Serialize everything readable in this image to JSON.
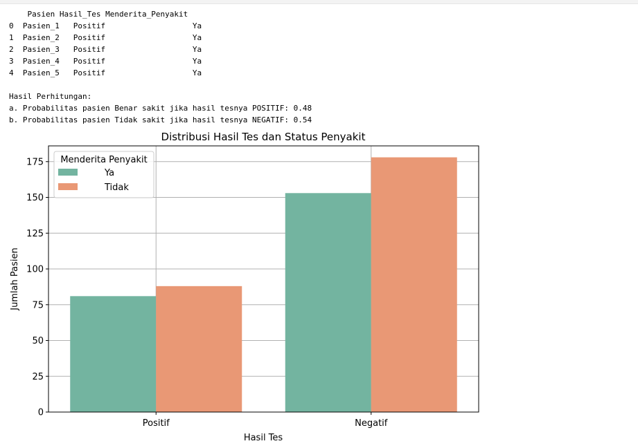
{
  "console": {
    "table": {
      "columns": [
        "Pasien",
        "Hasil_Tes",
        "Menderita_Penyakit"
      ],
      "rows": [
        {
          "index": "0",
          "Pasien": "Pasien_1",
          "Hasil_Tes": "Positif",
          "Menderita_Penyakit": "Ya"
        },
        {
          "index": "1",
          "Pasien": "Pasien_2",
          "Hasil_Tes": "Positif",
          "Menderita_Penyakit": "Ya"
        },
        {
          "index": "2",
          "Pasien": "Pasien_3",
          "Hasil_Tes": "Positif",
          "Menderita_Penyakit": "Ya"
        },
        {
          "index": "3",
          "Pasien": "Pasien_4",
          "Hasil_Tes": "Positif",
          "Menderita_Penyakit": "Ya"
        },
        {
          "index": "4",
          "Pasien": "Pasien_5",
          "Hasil_Tes": "Positif",
          "Menderita_Penyakit": "Ya"
        }
      ]
    },
    "heading": "Hasil Perhitungan:",
    "line_a": "a. Probabilitas pasien Benar sakit jika hasil tesnya POSITIF: 0.48",
    "line_b": "b. Probabilitas pasien Tidak sakit jika hasil tesnya NEGATIF: 0.54"
  },
  "chart_data": {
    "type": "bar",
    "title": "Distribusi Hasil Tes dan Status Penyakit",
    "xlabel": "Hasil Tes",
    "ylabel": "Jumlah Pasien",
    "categories": [
      "Positif",
      "Negatif"
    ],
    "series": [
      {
        "name": "Ya",
        "values": [
          81,
          153
        ],
        "color": "#73b4a0"
      },
      {
        "name": "Tidak",
        "values": [
          88,
          178
        ],
        "color": "#e99875"
      }
    ],
    "ylim": [
      0,
      186
    ],
    "yticks": [
      0,
      25,
      50,
      75,
      100,
      125,
      150,
      175
    ],
    "grid": true,
    "legend": {
      "title": "Menderita Penyakit",
      "placement": "upper-left"
    }
  }
}
